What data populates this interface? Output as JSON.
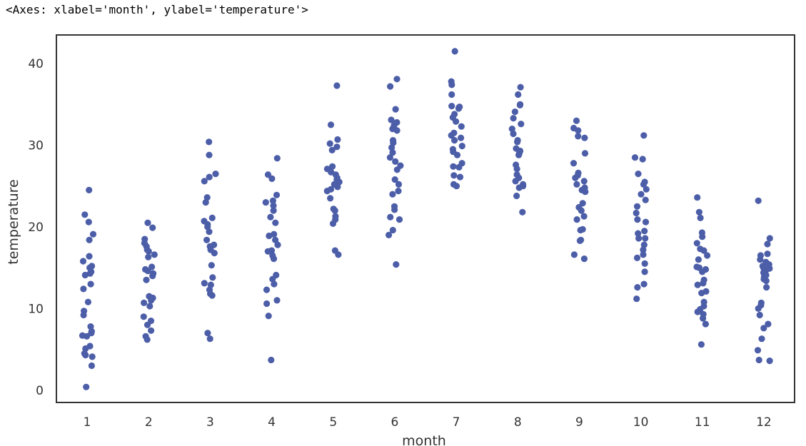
{
  "output_text": "<Axes: xlabel='month', ylabel='temperature'>",
  "chart_data": {
    "type": "scatter",
    "style": "strip plot (jittered points per category)",
    "title": "",
    "xlabel": "month",
    "ylabel": "temperature",
    "categories": [
      "1",
      "2",
      "3",
      "4",
      "5",
      "6",
      "7",
      "8",
      "9",
      "10",
      "11",
      "12"
    ],
    "ylim": [
      -1.5,
      43.5
    ],
    "yticks": [
      0,
      10,
      20,
      30,
      40
    ],
    "grid": false,
    "legend": "none",
    "point_color": "#4c5ea8",
    "points": [
      [
        24.5,
        21.5,
        20.6,
        19.1,
        18.4,
        16.4,
        15.8,
        15.2,
        15.0,
        14.5,
        14.3,
        14.1,
        13.0,
        12.4,
        10.8,
        9.7,
        9.2,
        7.8,
        7.2,
        7.0,
        6.7,
        6.6,
        5.4,
        5.1,
        4.5,
        4.3,
        4.1,
        3.0,
        0.4
      ],
      [
        20.5,
        19.9,
        18.5,
        18.0,
        17.6,
        17.2,
        17.0,
        16.6,
        16.3,
        15.1,
        14.8,
        14.6,
        14.3,
        14.0,
        13.5,
        11.5,
        11.3,
        11.0,
        10.7,
        10.3,
        9.0,
        8.5,
        8.0,
        7.3,
        6.6,
        6.2
      ],
      [
        30.4,
        28.8,
        26.5,
        26.1,
        25.6,
        23.6,
        23.0,
        21.1,
        20.7,
        20.3,
        20.0,
        19.4,
        18.4,
        17.8,
        17.6,
        17.2,
        16.8,
        15.3,
        13.8,
        13.1,
        12.9,
        12.3,
        11.8,
        11.6,
        7.0,
        6.3
      ],
      [
        28.4,
        26.4,
        25.9,
        23.9,
        23.2,
        23.0,
        22.6,
        22.0,
        21.2,
        20.5,
        19.1,
        18.9,
        18.4,
        17.8,
        17.1,
        17.0,
        16.5,
        16.1,
        14.1,
        13.6,
        13.0,
        12.3,
        11.0,
        10.6,
        9.1,
        3.7
      ],
      [
        37.3,
        32.5,
        30.7,
        30.2,
        29.8,
        29.4,
        27.4,
        27.1,
        26.7,
        26.4,
        26.0,
        25.8,
        25.5,
        25.2,
        24.9,
        24.6,
        24.4,
        23.5,
        22.2,
        22.0,
        21.3,
        20.9,
        20.4,
        17.1,
        16.6
      ],
      [
        38.1,
        37.2,
        34.4,
        33.1,
        32.8,
        32.4,
        32.0,
        31.8,
        30.6,
        30.3,
        29.7,
        29.1,
        28.5,
        28.0,
        27.5,
        27.0,
        25.8,
        25.2,
        24.4,
        24.0,
        22.5,
        22.1,
        21.2,
        20.9,
        19.6,
        19.0,
        15.4
      ],
      [
        41.5,
        37.8,
        37.4,
        36.2,
        34.8,
        34.7,
        34.6,
        34.5,
        33.8,
        33.4,
        32.9,
        32.3,
        31.5,
        31.2,
        30.9,
        30.6,
        29.9,
        29.5,
        29.2,
        28.8,
        27.8,
        27.4,
        27.3,
        26.3,
        26.1,
        25.2,
        25.0
      ],
      [
        37.1,
        36.2,
        35.0,
        34.9,
        34.1,
        33.3,
        32.6,
        32.0,
        31.4,
        30.6,
        30.4,
        29.6,
        29.3,
        29.0,
        28.8,
        27.6,
        27.1,
        26.4,
        26.0,
        25.6,
        25.2,
        25.0,
        24.8,
        23.8,
        21.8
      ],
      [
        33.0,
        32.1,
        31.8,
        31.1,
        30.9,
        29.0,
        27.8,
        26.6,
        26.3,
        26.0,
        25.6,
        25.2,
        24.8,
        24.5,
        24.3,
        22.9,
        22.4,
        22.0,
        21.3,
        20.9,
        19.7,
        19.6,
        18.4,
        18.3,
        16.6,
        16.1
      ],
      [
        31.2,
        28.5,
        28.3,
        26.5,
        25.5,
        25.2,
        24.6,
        24.0,
        23.3,
        22.5,
        21.7,
        20.9,
        20.6,
        19.5,
        19.2,
        18.6,
        18.6,
        17.8,
        17.2,
        16.6,
        16.2,
        15.5,
        14.5,
        13.0,
        12.6,
        11.2
      ],
      [
        23.6,
        21.8,
        21.1,
        19.3,
        18.8,
        18.0,
        17.3,
        17.1,
        16.5,
        16.0,
        15.1,
        15.0,
        14.8,
        14.5,
        13.5,
        13.1,
        12.9,
        12.1,
        11.9,
        10.8,
        10.3,
        9.9,
        9.6,
        9.3,
        8.8,
        8.1,
        5.6
      ],
      [
        23.2,
        18.6,
        17.9,
        16.7,
        16.5,
        16.0,
        15.7,
        15.4,
        15.2,
        15.0,
        14.9,
        14.7,
        14.4,
        14.1,
        13.9,
        13.6,
        13.4,
        12.6,
        10.7,
        10.4,
        10.0,
        9.2,
        8.1,
        7.6,
        6.3,
        4.9,
        3.7,
        3.6
      ]
    ]
  }
}
